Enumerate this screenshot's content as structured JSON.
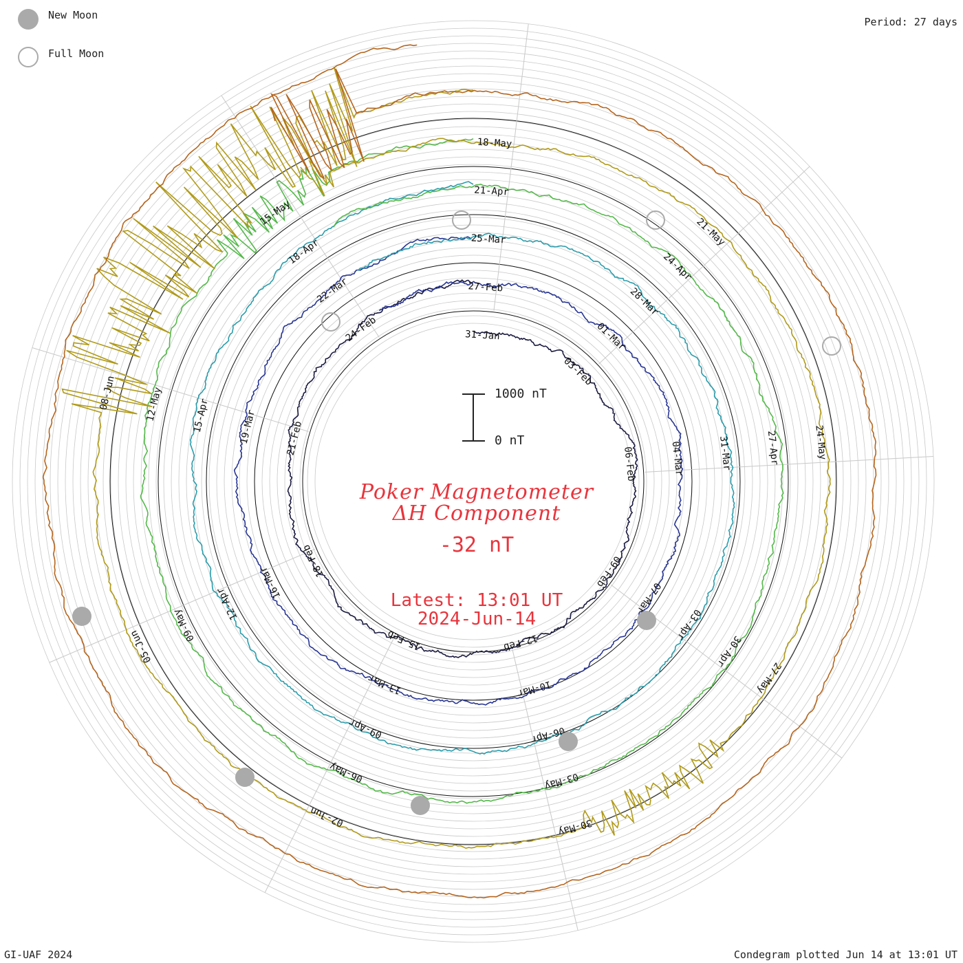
{
  "legend": {
    "new_moon": "New Moon",
    "full_moon": "Full Moon"
  },
  "period_label": "Period: 27 days",
  "footer": {
    "left": "GI-UAF 2024",
    "right": "Condegram plotted Jun 14 at 13:01 UT"
  },
  "scale": {
    "top_label": "1000 nT",
    "bottom_label": "0 nT"
  },
  "title": {
    "line1": "Poker Magnetometer",
    "line2": "ΔH Component"
  },
  "current_value": "-32 nT",
  "latest": {
    "time": "Latest: 13:01 UT",
    "date": "2024-Jun-14"
  },
  "colors": {
    "new_moon": "#aaaaaa",
    "text_red": "#e8343c",
    "grid": "#c8c8c8",
    "cycle_colors": [
      "#1a1a40",
      "#283593",
      "#2a9cab",
      "#54b84a",
      "#b09a18",
      "#b5651d"
    ]
  },
  "chart_data": {
    "type": "condegram",
    "period_days": 27,
    "scale_nT": [
      0,
      1000
    ],
    "cycles": [
      {
        "labels": [
          "31-Jan",
          "03-Feb",
          "06-Feb",
          "09-Feb",
          "12-Feb",
          "15-Feb",
          "18-Feb",
          "21-Feb",
          "24-Feb"
        ]
      },
      {
        "labels": [
          "27-Feb",
          "01-Mar",
          "04-Mar",
          "07-Mar",
          "10-Mar",
          "13-Mar",
          "16-Mar",
          "19-Mar",
          "22-Mar"
        ]
      },
      {
        "labels": [
          "25-Mar",
          "28-Mar",
          "31-Mar",
          "03-Apr",
          "06-Apr",
          "09-Apr",
          "12-Apr",
          "15-Apr",
          "18-Apr"
        ]
      },
      {
        "labels": [
          "21-Apr",
          "24-Apr",
          "27-Apr",
          "30-Apr",
          "03-May",
          "06-May",
          "09-May",
          "12-May",
          "15-May"
        ]
      },
      {
        "labels": [
          "18-May",
          "21-May",
          "24-May",
          "27-May",
          "30-May",
          "02-Jun",
          "05-Jun",
          "08-Jun"
        ]
      }
    ],
    "new_moon_days": [
      "09-Feb",
      "10-Mar",
      "08-Apr",
      "08-May",
      "06-Jun"
    ],
    "full_moon_days": [
      "24-Feb",
      "25-Mar",
      "23-Apr",
      "23-May"
    ]
  }
}
